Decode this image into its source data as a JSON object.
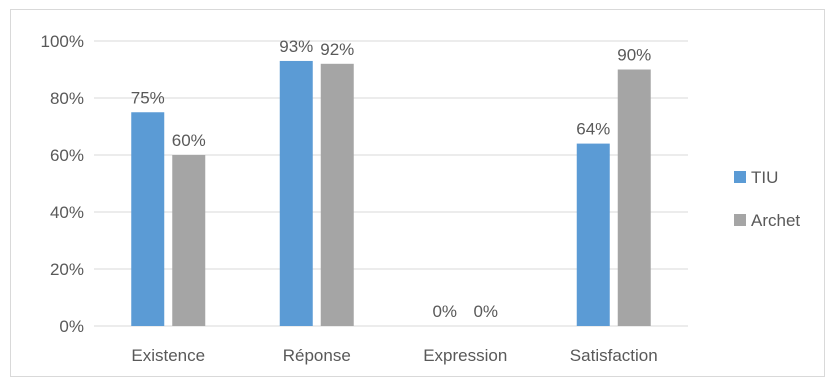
{
  "chart_data": {
    "type": "bar",
    "title": "",
    "xlabel": "",
    "ylabel": "",
    "categories": [
      "Existence",
      "Réponse",
      "Expression",
      "Satisfaction"
    ],
    "series": [
      {
        "name": "TIU",
        "values": [
          75,
          93,
          0,
          64
        ],
        "labels": [
          "75%",
          "93%",
          "0%",
          "64%"
        ],
        "color": "#5b9bd5"
      },
      {
        "name": "Archet",
        "values": [
          60,
          92,
          0,
          90
        ],
        "labels": [
          "60%",
          "92%",
          "0%",
          "90%"
        ],
        "color": "#a5a5a5"
      }
    ],
    "ylim": [
      0,
      100
    ],
    "yticks": [
      0,
      20,
      40,
      60,
      80,
      100
    ],
    "ytick_labels": [
      "0%",
      "20%",
      "40%",
      "60%",
      "80%",
      "100%"
    ],
    "grid": true,
    "legend_position": "right",
    "gridline_color": "#d9d9d9"
  }
}
